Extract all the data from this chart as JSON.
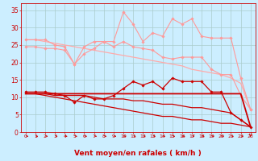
{
  "xlabel": "Vent moyen/en rafales ( km/h )",
  "x": [
    0,
    1,
    2,
    3,
    4,
    5,
    6,
    7,
    8,
    9,
    10,
    11,
    12,
    13,
    14,
    15,
    16,
    17,
    18,
    19,
    20,
    21,
    22,
    23
  ],
  "series": [
    {
      "name": "line1_diagonal",
      "y": [
        26.5,
        26.5,
        26.0,
        25.5,
        25.0,
        24.5,
        24.0,
        23.5,
        23.0,
        22.5,
        22.0,
        21.5,
        21.0,
        20.5,
        20.0,
        19.5,
        19.0,
        18.0,
        17.5,
        17.0,
        16.5,
        15.5,
        14.0,
        6.5
      ],
      "color": "#ffaaaa",
      "linewidth": 0.9,
      "marker": null
    },
    {
      "name": "line2_upper_zigzag",
      "y": [
        26.5,
        26.5,
        26.5,
        25.0,
        24.5,
        19.5,
        24.5,
        26.0,
        26.0,
        26.0,
        34.5,
        31.0,
        26.0,
        28.5,
        27.5,
        32.5,
        31.0,
        32.5,
        27.5,
        27.0,
        27.0,
        27.0,
        15.5,
        6.5
      ],
      "color": "#ff9999",
      "linewidth": 0.8,
      "marker": "D",
      "markersize": 1.8
    },
    {
      "name": "line3_mid_zigzag",
      "y": [
        24.5,
        24.5,
        24.0,
        24.0,
        23.5,
        19.5,
        22.5,
        24.0,
        26.0,
        24.5,
        26.0,
        24.5,
        24.0,
        23.5,
        21.5,
        21.0,
        21.5,
        21.5,
        21.5,
        18.0,
        16.5,
        16.5,
        10.5,
        6.5
      ],
      "color": "#ff9999",
      "linewidth": 0.8,
      "marker": "D",
      "markersize": 1.8
    },
    {
      "name": "line4_flat",
      "y": [
        11.0,
        11.0,
        11.0,
        11.0,
        11.0,
        11.0,
        11.0,
        11.0,
        11.0,
        11.0,
        11.0,
        11.0,
        11.0,
        11.0,
        11.0,
        11.0,
        11.0,
        11.0,
        11.0,
        11.0,
        11.0,
        11.0,
        11.0,
        1.5
      ],
      "color": "#cc0000",
      "linewidth": 1.3,
      "marker": null
    },
    {
      "name": "line5_zigzag_lower",
      "y": [
        11.5,
        11.5,
        11.5,
        11.0,
        10.5,
        8.5,
        10.5,
        9.5,
        9.5,
        10.5,
        12.5,
        14.5,
        13.5,
        14.5,
        12.5,
        15.5,
        14.5,
        14.5,
        14.5,
        11.5,
        11.5,
        5.5,
        3.5,
        1.5
      ],
      "color": "#cc0000",
      "linewidth": 0.9,
      "marker": "D",
      "markersize": 1.8
    },
    {
      "name": "line6_decay1",
      "y": [
        11.0,
        11.0,
        11.0,
        10.5,
        10.5,
        10.5,
        10.5,
        10.0,
        9.5,
        9.5,
        9.5,
        9.0,
        9.0,
        8.5,
        8.0,
        8.0,
        7.5,
        7.0,
        7.0,
        6.5,
        6.0,
        5.5,
        3.5,
        1.5
      ],
      "color": "#cc0000",
      "linewidth": 0.9,
      "marker": null
    },
    {
      "name": "line7_decay2",
      "y": [
        11.0,
        11.0,
        10.5,
        10.0,
        9.5,
        9.0,
        8.5,
        8.0,
        7.5,
        7.0,
        6.5,
        6.0,
        5.5,
        5.0,
        4.5,
        4.5,
        4.0,
        3.5,
        3.5,
        3.0,
        2.5,
        2.5,
        2.0,
        1.5
      ],
      "color": "#cc0000",
      "linewidth": 0.9,
      "marker": null
    }
  ],
  "ylim": [
    0,
    37
  ],
  "yticks": [
    0,
    5,
    10,
    15,
    20,
    25,
    30,
    35
  ],
  "bg_color": "#cceeff",
  "grid_color": "#aacccc",
  "text_color": "#cc0000",
  "xlabel_color": "#cc0000",
  "tick_color": "#cc0000"
}
